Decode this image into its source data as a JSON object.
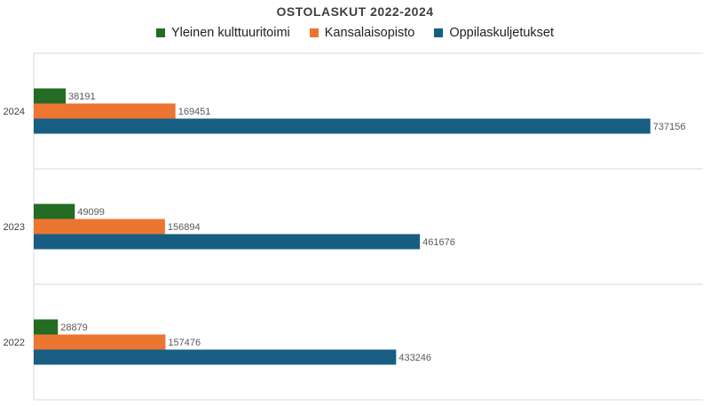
{
  "chart_data": {
    "type": "bar",
    "orientation": "horizontal",
    "title": "OSTOLASKUT 2022-2024",
    "categories": [
      "2024",
      "2023",
      "2022"
    ],
    "series": [
      {
        "name": "Yleinen kulttuuritoimi",
        "color": "#246b24",
        "values": [
          38191,
          49099,
          28879
        ]
      },
      {
        "name": "Kansalaisopisto",
        "color": "#ed7532",
        "values": [
          169451,
          156894,
          157476
        ]
      },
      {
        "name": "Oppilaskuljetukset",
        "color": "#175e82",
        "values": [
          737156,
          461676,
          433246
        ]
      }
    ],
    "xlim": [
      0,
      800000
    ],
    "grid": true,
    "legend_position": "top",
    "data_labels": true
  }
}
